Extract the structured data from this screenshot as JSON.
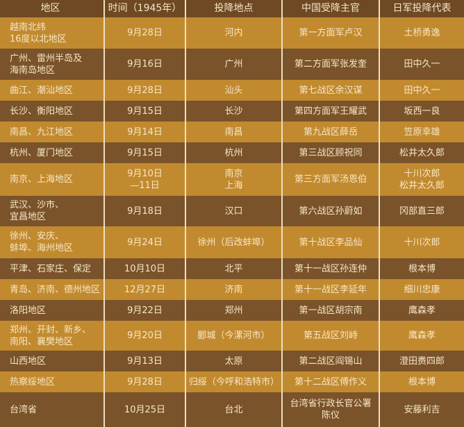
{
  "columns": [
    "地区",
    "时间（1945年）",
    "投降地点",
    "中国受降主官",
    "日军投降代表"
  ],
  "rows": [
    [
      "越南北纬\n16度以北地区",
      "9月28日",
      "河内",
      "第一方面军卢汉",
      "土桥勇逸"
    ],
    [
      "广州、雷州半岛及\n海南岛地区",
      "9月16日",
      "广州",
      "第二方面军张发奎",
      "田中久一"
    ],
    [
      "曲江、潮汕地区",
      "9月28日",
      "汕头",
      "第七战区余汉谋",
      "田中久一"
    ],
    [
      "长沙、衡阳地区",
      "9月15日",
      "长沙",
      "第四方面军王耀武",
      "坂西一良"
    ],
    [
      "南昌、九江地区",
      "9月14日",
      "南昌",
      "第九战区薛岳",
      "笠原幸雄"
    ],
    [
      "杭州、厦门地区",
      "9月15日",
      "杭州",
      "第三战区顾祝同",
      "松井太久郎"
    ],
    [
      "南京、上海地区",
      "9月10日\n—11日",
      "南京\n上海",
      "第三方面军汤恩伯",
      "十川次郎\n松井太久郎"
    ],
    [
      "武汉、沙市、\n宜昌地区",
      "9月18日",
      "汉口",
      "第六战区孙蔚如",
      "冈部直三郎"
    ],
    [
      "徐州、安庆、\n蚌埠、海州地区",
      "9月24日",
      "徐州（后改蚌埠）",
      "第十战区李品仙",
      "十川次郎"
    ],
    [
      "平津、石家庄、保定",
      "10月10日",
      "北平",
      "第十一战区孙连仲",
      "根本博"
    ],
    [
      "青岛、济南、德州地区",
      "12月27日",
      "济南",
      "第十一战区李延年",
      "细川忠康"
    ],
    [
      "洛阳地区",
      "9月22日",
      "郑州",
      "第一战区胡宗南",
      "鹰森孝"
    ],
    [
      "郑州、开封、新乡、\n南阳、襄樊地区",
      "9月20日",
      "郾城（今漯河市）",
      "第五战区刘峙",
      "鹰森孝"
    ],
    [
      "山西地区",
      "9月13日",
      "太原",
      "第二战区阎锡山",
      "澄田赉四郎"
    ],
    [
      "热察绥地区",
      "9月28日",
      "归绥（今呼和浩特市）",
      "第十二战区傅作义",
      "根本博"
    ],
    [
      "台湾省",
      "10月25日",
      "台北",
      "台湾省行政长官公署\n陈仪",
      "安藤利吉"
    ]
  ],
  "colors": {
    "header": "#6e4924",
    "row_light": "#c28a2f",
    "row_dark": "#7a532b",
    "text": "#f7e7c6"
  }
}
